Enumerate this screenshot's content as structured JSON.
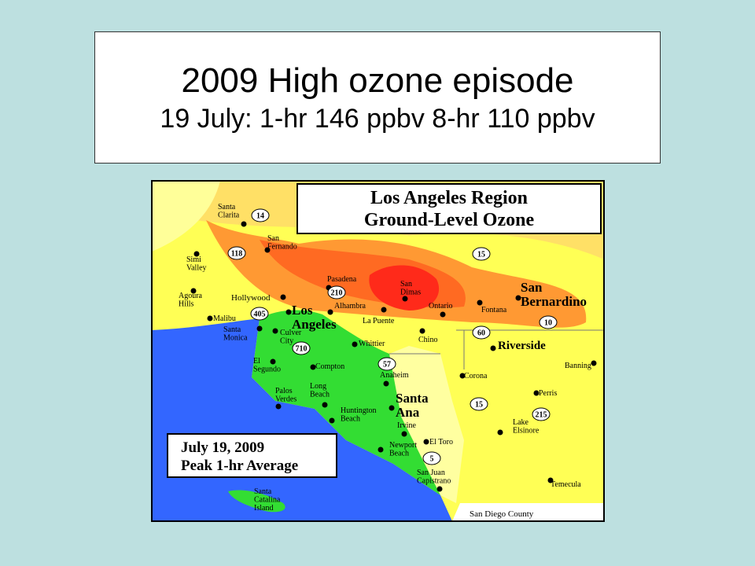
{
  "header": {
    "title": "2009 High ozone episode",
    "subtitle": "19 July: 1-hr 146 ppbv 8-hr 110 ppbv"
  },
  "map": {
    "title": [
      "Los Angeles Region",
      "Ground-Level Ozone"
    ],
    "inset": [
      "July 19, 2009",
      "Peak 1-hr Average"
    ],
    "labels": [
      {
        "lines": [
          "Santa",
          "Clarita"
        ]
      },
      {
        "lines": [
          "San",
          "Fernando"
        ]
      },
      {
        "lines": [
          "Simi",
          "Valley"
        ]
      },
      {
        "lines": [
          "Agoura",
          "Hills"
        ]
      },
      {
        "lines": [
          "Hollywood"
        ]
      },
      {
        "lines": [
          "Malibu"
        ]
      },
      {
        "lines": [
          "Santa",
          "Monica"
        ]
      },
      {
        "lines": [
          "Culver",
          "City"
        ]
      },
      {
        "lines": [
          "El",
          "Segundo"
        ]
      },
      {
        "lines": [
          "Palos",
          "Verdes"
        ]
      },
      {
        "lines": [
          "Compton"
        ]
      },
      {
        "lines": [
          "Long",
          "Beach"
        ]
      },
      {
        "lines": [
          "Pasadena"
        ]
      },
      {
        "lines": [
          "Alhambra"
        ]
      },
      {
        "lines": [
          "Los",
          "Angeles"
        ]
      },
      {
        "lines": [
          "San",
          "Dimas"
        ]
      },
      {
        "lines": [
          "Ontario"
        ]
      },
      {
        "lines": [
          "La Puente"
        ]
      },
      {
        "lines": [
          "Whittier"
        ]
      },
      {
        "lines": [
          "Chino"
        ]
      },
      {
        "lines": [
          "Fontana"
        ]
      },
      {
        "lines": [
          "San",
          "Bernardino"
        ]
      },
      {
        "lines": [
          "Riverside"
        ]
      },
      {
        "lines": [
          "Anaheim"
        ]
      },
      {
        "lines": [
          "Santa",
          "Ana"
        ]
      },
      {
        "lines": [
          "Huntington",
          "Beach"
        ]
      },
      {
        "lines": [
          "Irvine"
        ]
      },
      {
        "lines": [
          "Newport",
          "Beach"
        ]
      },
      {
        "lines": [
          "El Toro"
        ]
      },
      {
        "lines": [
          "San Juan",
          "Capistrano"
        ]
      },
      {
        "lines": [
          "Corona"
        ]
      },
      {
        "lines": [
          "Banning"
        ]
      },
      {
        "lines": [
          "Perris"
        ]
      },
      {
        "lines": [
          "Lake",
          "Elsinore"
        ]
      },
      {
        "lines": [
          "Temecula"
        ]
      },
      {
        "lines": [
          "Santa",
          "Catalina",
          "Island"
        ]
      },
      {
        "lines": [
          "San Diego County"
        ]
      }
    ],
    "highways": [
      "14",
      "118",
      "210",
      "405",
      "710",
      "57",
      "15",
      "60",
      "10",
      "215",
      "15",
      "5"
    ]
  }
}
